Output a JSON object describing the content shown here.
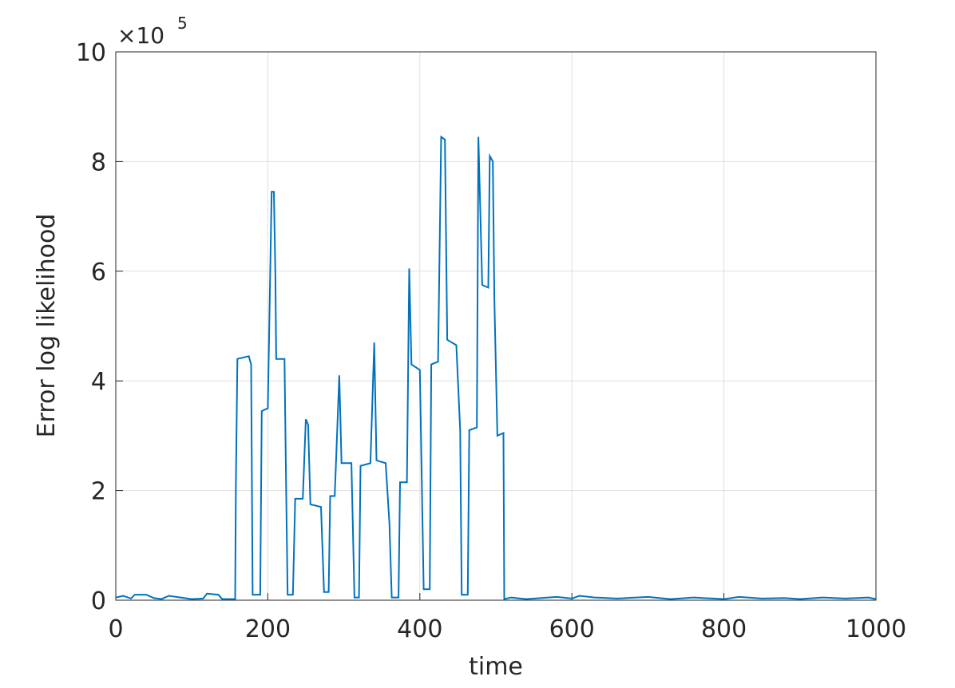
{
  "chart_data": {
    "type": "line",
    "xlabel": "time",
    "ylabel": "Error log likelihood",
    "y_multiplier": "×10",
    "y_multiplier_exponent": "5",
    "xlim": [
      0,
      1000
    ],
    "xticks": [
      0,
      200,
      400,
      600,
      800,
      1000
    ],
    "ylim": [
      0,
      10
    ],
    "yticks": [
      0,
      2,
      4,
      6,
      8,
      10
    ],
    "grid": true,
    "series": [
      {
        "color": "#0072bd",
        "x": [
          0,
          10,
          20,
          25,
          40,
          50,
          60,
          70,
          85,
          100,
          115,
          120,
          135,
          140,
          157,
          158,
          160,
          175,
          178,
          180,
          190,
          192,
          200,
          205,
          208,
          210,
          211,
          222,
          224,
          226,
          233,
          236,
          246,
          250,
          253,
          256,
          270,
          274,
          280,
          282,
          288,
          294,
          297,
          310,
          314,
          320,
          322,
          335,
          340,
          343,
          355,
          360,
          363,
          372,
          374,
          383,
          386,
          389,
          400,
          405,
          413,
          415,
          424,
          428,
          433,
          436,
          448,
          453,
          455,
          463,
          465,
          475,
          477,
          482,
          490,
          492,
          496,
          498,
          502,
          510,
          511,
          520,
          540,
          560,
          580,
          600,
          610,
          630,
          660,
          700,
          730,
          760,
          800,
          820,
          850,
          880,
          900,
          930,
          960,
          990,
          1000
        ],
        "values": [
          0.05,
          0.08,
          0.03,
          0.1,
          0.1,
          0.04,
          0.02,
          0.08,
          0.05,
          0.02,
          0.03,
          0.12,
          0.1,
          0.02,
          0.02,
          2.1,
          4.4,
          4.45,
          4.3,
          0.1,
          0.1,
          3.45,
          3.5,
          7.45,
          7.45,
          5.9,
          4.4,
          4.4,
          2.2,
          0.1,
          0.1,
          1.85,
          1.85,
          3.3,
          3.2,
          1.75,
          1.7,
          0.15,
          0.15,
          1.9,
          1.9,
          4.1,
          2.5,
          2.5,
          0.05,
          0.05,
          2.45,
          2.5,
          4.7,
          2.55,
          2.5,
          1.4,
          0.05,
          0.05,
          2.15,
          2.15,
          6.05,
          4.3,
          4.2,
          0.2,
          0.2,
          4.3,
          4.35,
          8.45,
          8.4,
          4.75,
          4.65,
          3.1,
          0.1,
          0.1,
          3.1,
          3.15,
          8.45,
          5.75,
          5.7,
          8.1,
          8.0,
          5.5,
          3.0,
          3.05,
          0.02,
          0.05,
          0.02,
          0.04,
          0.06,
          0.03,
          0.08,
          0.05,
          0.03,
          0.06,
          0.02,
          0.05,
          0.02,
          0.06,
          0.03,
          0.04,
          0.02,
          0.05,
          0.03,
          0.05,
          0.02
        ]
      }
    ]
  }
}
